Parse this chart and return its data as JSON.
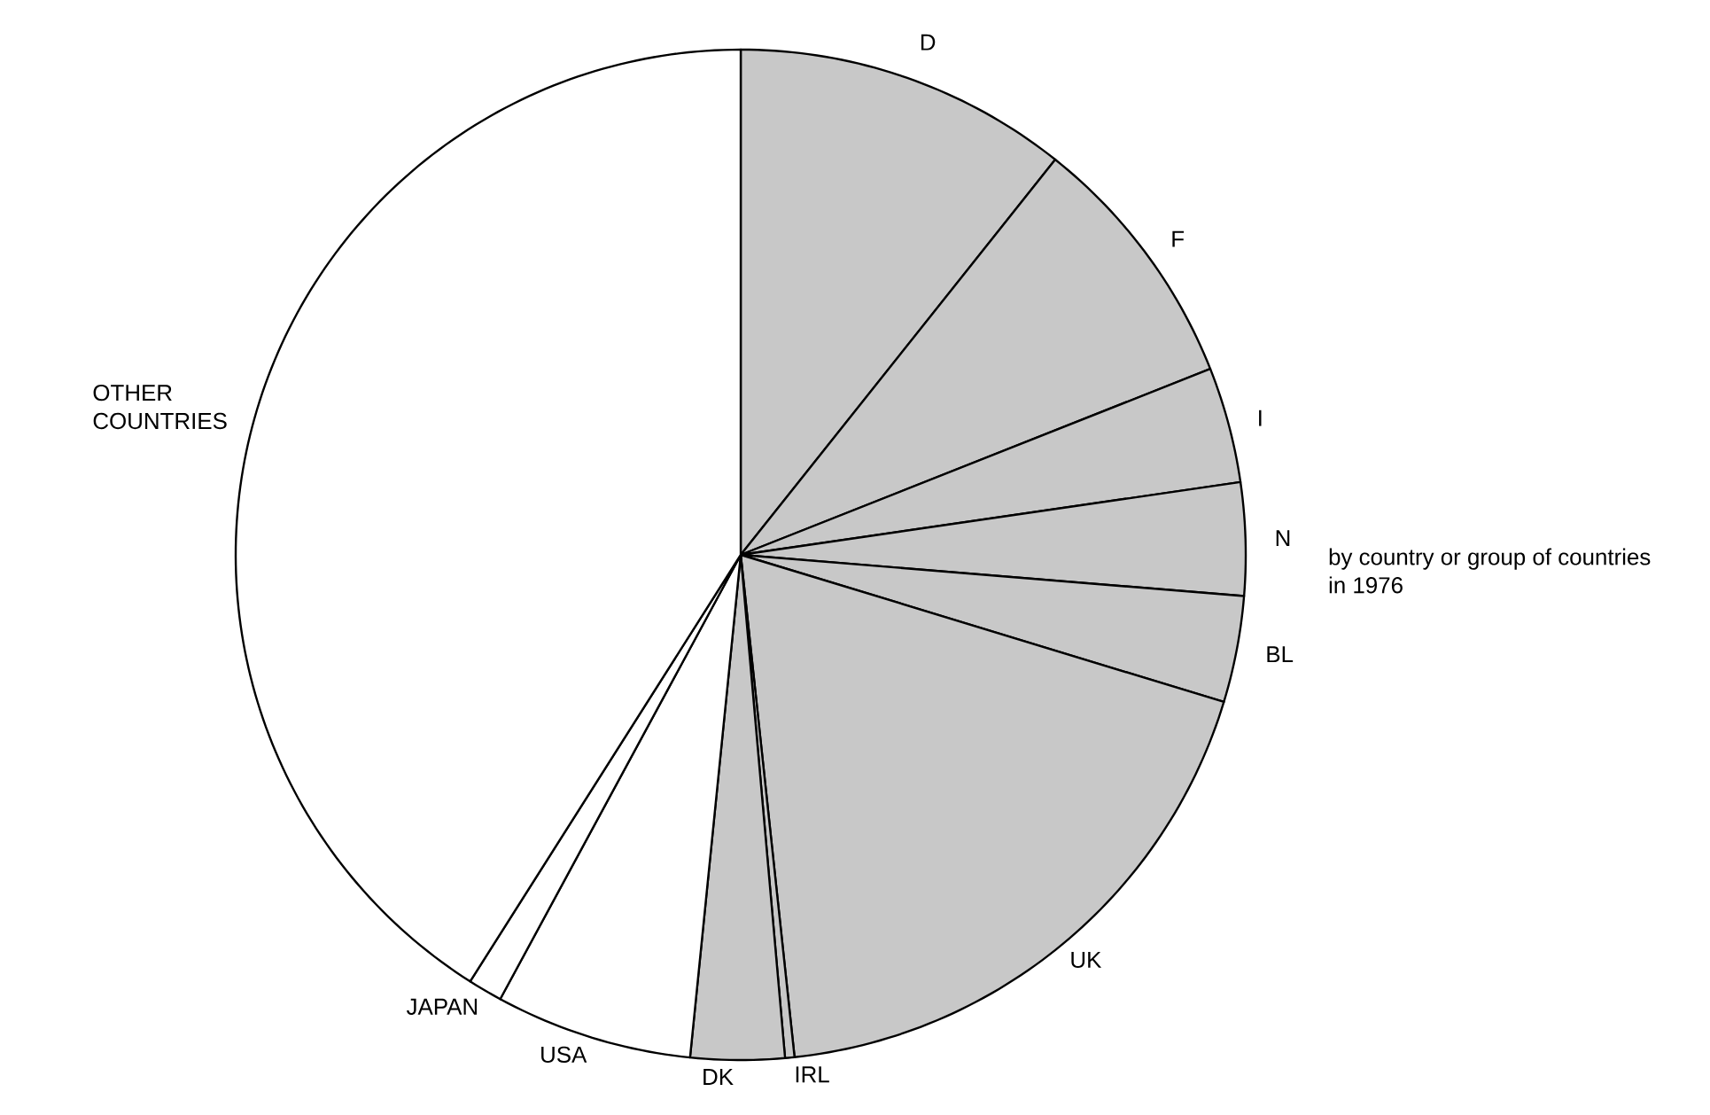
{
  "chart_data": {
    "type": "pie",
    "categories": [
      "D",
      "F",
      "I",
      "N",
      "BL",
      "UK",
      "IRL",
      "DK",
      "USA",
      "JAPAN",
      "OTHER COUNTRIES"
    ],
    "values": [
      10.7,
      8.3,
      3.7,
      3.6,
      3.4,
      18.6,
      0.3,
      3.0,
      6.3,
      1.1,
      41.0
    ],
    "colors": [
      "#c8c8c8",
      "#c8c8c8",
      "#c8c8c8",
      "#c8c8c8",
      "#c8c8c8",
      "#c8c8c8",
      "#c8c8c8",
      "#c8c8c8",
      "#ffffff",
      "#ffffff",
      "#ffffff"
    ],
    "annotations": [
      "by country or group of countries in 1976"
    ]
  }
}
